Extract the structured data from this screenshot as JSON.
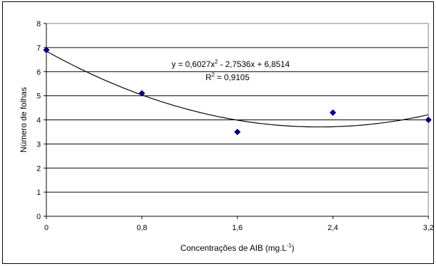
{
  "chart_data": {
    "type": "scatter",
    "title": "",
    "xlabel": "Concentrações de AIB (mg.L",
    "xlabel_sup": "-1",
    "xlabel_suffix": ")",
    "ylabel": "Número de folhas",
    "xlim": [
      0,
      3.2
    ],
    "ylim": [
      0,
      8
    ],
    "x_ticks": [
      0,
      0.8,
      1.6,
      2.4,
      3.2
    ],
    "x_tick_labels": [
      "0",
      "0,8",
      "1,6",
      "2,4",
      "3,2"
    ],
    "y_ticks": [
      0,
      1,
      2,
      3,
      4,
      5,
      6,
      7,
      8
    ],
    "y_tick_labels": [
      "0",
      "1",
      "2",
      "3",
      "4",
      "5",
      "6",
      "7",
      "8"
    ],
    "grid": "horizontal",
    "marker_color": "#000080",
    "line_color": "#000000",
    "points": [
      {
        "x": 0,
        "y": 6.9
      },
      {
        "x": 0.8,
        "y": 5.1
      },
      {
        "x": 1.6,
        "y": 3.5
      },
      {
        "x": 2.4,
        "y": 4.3
      },
      {
        "x": 3.2,
        "y": 4.0
      }
    ],
    "trendline": {
      "type": "polynomial",
      "coefficients": [
        0.6027,
        -2.7536,
        6.8514
      ],
      "equation_parts": [
        "y = 0,6027x",
        "2",
        " - 2,7536x + 6,8514"
      ],
      "r2_parts": [
        "R",
        "2",
        " = 0,9105"
      ]
    }
  }
}
